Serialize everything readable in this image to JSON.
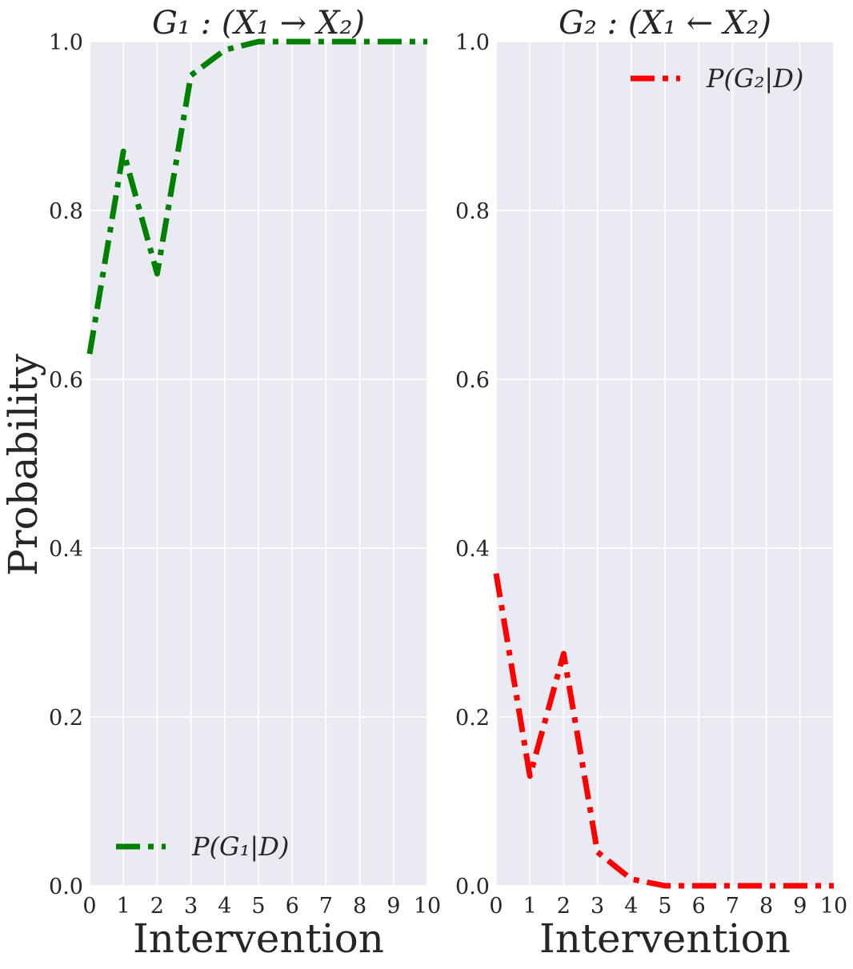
{
  "figure": {
    "ylabel": "Probability",
    "background": "#EAEAF2",
    "grid_color": "#FFFFFF"
  },
  "chart_data": [
    {
      "type": "line",
      "title": "G₁ : (X₁ → X₂)",
      "xlabel": "Intervention",
      "ylabel": "Probability",
      "xlim": [
        0,
        10
      ],
      "ylim": [
        0,
        1
      ],
      "grid": true,
      "x_ticks": [
        0,
        1,
        2,
        3,
        4,
        5,
        6,
        7,
        8,
        9,
        10
      ],
      "y_ticks": [
        "0.0",
        "0.2",
        "0.4",
        "0.6",
        "0.8",
        "1.0"
      ],
      "legend_position": "bottom-left",
      "series": [
        {
          "name": "P(G₁|D)",
          "color": "#008000",
          "x": [
            0,
            1,
            2,
            3,
            4,
            5,
            6,
            7,
            8,
            9,
            10
          ],
          "values": [
            0.63,
            0.87,
            0.725,
            0.96,
            0.99,
            1.0,
            1.0,
            1.0,
            1.0,
            1.0,
            1.0
          ]
        }
      ]
    },
    {
      "type": "line",
      "title": "G₂ : (X₁ ← X₂)",
      "xlabel": "Intervention",
      "ylabel": "",
      "xlim": [
        0,
        10
      ],
      "ylim": [
        0,
        1
      ],
      "grid": true,
      "x_ticks": [
        0,
        1,
        2,
        3,
        4,
        5,
        6,
        7,
        8,
        9,
        10
      ],
      "y_ticks": [
        "0.0",
        "0.2",
        "0.4",
        "0.6",
        "0.8",
        "1.0"
      ],
      "legend_position": "top-right",
      "series": [
        {
          "name": "P(G₂|D)",
          "color": "#FF0000",
          "x": [
            0,
            1,
            2,
            3,
            4,
            5,
            6,
            7,
            8,
            9,
            10
          ],
          "values": [
            0.37,
            0.13,
            0.275,
            0.04,
            0.008,
            0.0,
            0.0,
            0.0,
            0.0,
            0.0,
            0.0
          ]
        }
      ]
    }
  ]
}
